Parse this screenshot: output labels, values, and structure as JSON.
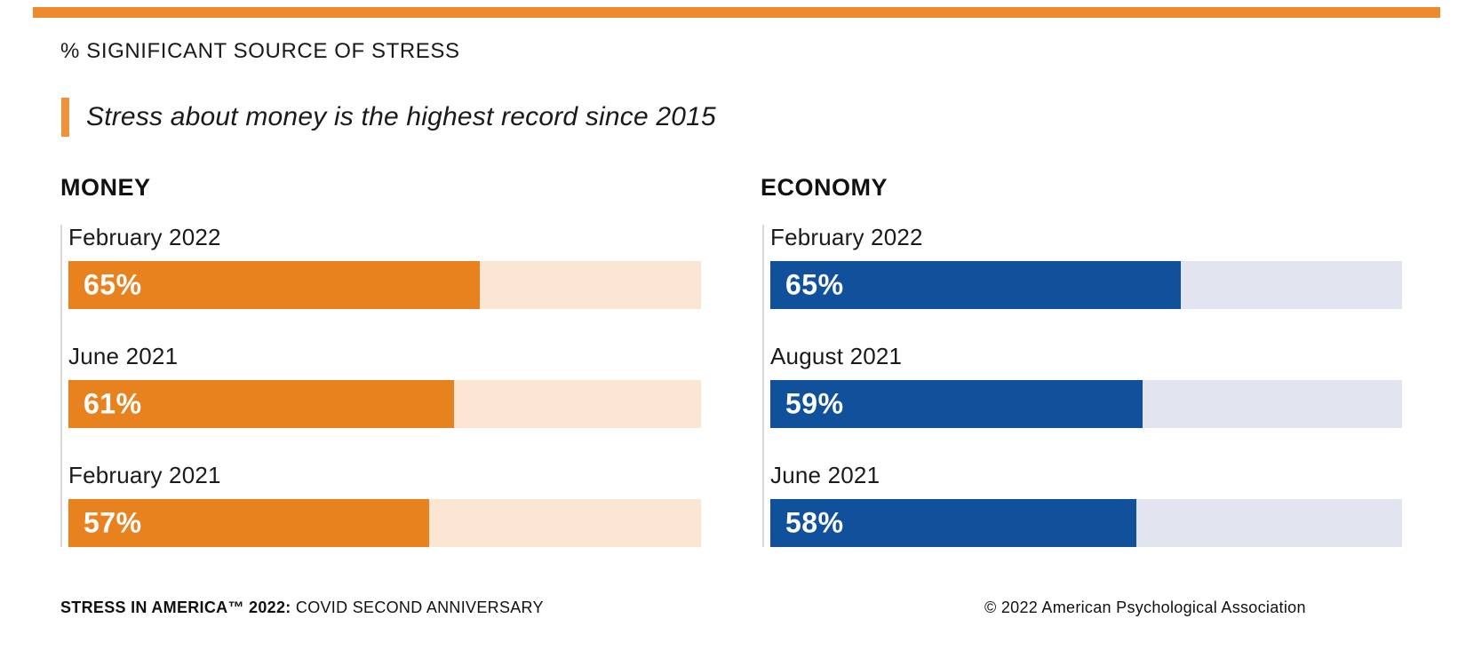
{
  "page": {
    "eyebrow": "% SIGNIFICANT SOURCE OF STRESS",
    "headline": "Stress about money is the highest record since 2015"
  },
  "colors": {
    "accent_orange": "#F0913C",
    "top_rule_orange": "#EE8A2E",
    "money_bar": "#E8821F",
    "money_track": "#FBE6D3",
    "economy_bar": "#11519C",
    "economy_track": "#E2E4EF",
    "rule_gray": "#D8D8DA"
  },
  "chart_data": [
    {
      "type": "bar",
      "orientation": "horizontal",
      "title": "MONEY",
      "categories": [
        "February 2022",
        "June 2021",
        "February 2021"
      ],
      "values": [
        65,
        61,
        57
      ],
      "value_labels": [
        "65%",
        "61%",
        "57%"
      ],
      "unit": "%",
      "xlim": [
        0,
        100
      ],
      "bar_color": "#E8821F",
      "track_color": "#FBE6D3",
      "grid": false,
      "legend": false
    },
    {
      "type": "bar",
      "orientation": "horizontal",
      "title": "ECONOMY",
      "categories": [
        "February 2022",
        "August 2021",
        "June 2021"
      ],
      "values": [
        65,
        59,
        58
      ],
      "value_labels": [
        "65%",
        "59%",
        "58%"
      ],
      "unit": "%",
      "xlim": [
        0,
        100
      ],
      "bar_color": "#11519C",
      "track_color": "#E2E4EF",
      "grid": false,
      "legend": false
    }
  ],
  "footer": {
    "left_bold": "STRESS IN AMERICA™ 2022:",
    "left_regular": "COVID SECOND ANNIVERSARY",
    "right": "© 2022 American Psychological Association"
  }
}
